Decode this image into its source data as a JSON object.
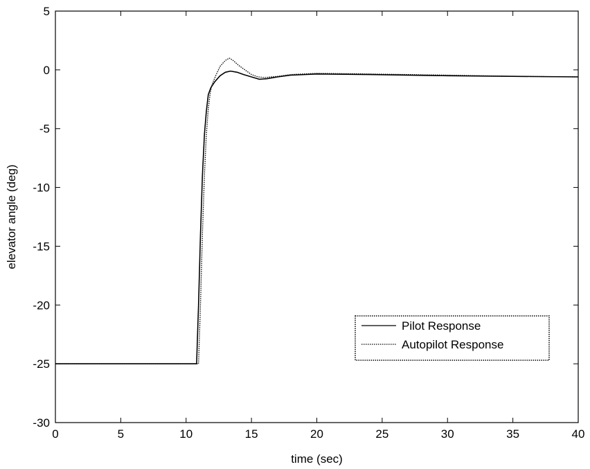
{
  "chart_data": {
    "type": "line",
    "title": "",
    "xlabel": "time (sec)",
    "ylabel": "elevator angle (deg)",
    "xlim": [
      0,
      40
    ],
    "ylim": [
      -30,
      5
    ],
    "xticks": [
      0,
      5,
      10,
      15,
      20,
      25,
      30,
      35,
      40
    ],
    "yticks": [
      5,
      0,
      -5,
      -10,
      -15,
      -20,
      -25,
      -30
    ],
    "grid": false,
    "legend_position": "lower-right",
    "line_color": "#000000",
    "series": [
      {
        "name": "Pilot Response",
        "style": "solid",
        "x": [
          0,
          10.8,
          10.95,
          11.1,
          11.25,
          11.4,
          11.55,
          11.7,
          11.9,
          12.2,
          12.6,
          13.0,
          13.4,
          13.9,
          14.4,
          15.0,
          15.6,
          16.2,
          17.0,
          18.0,
          20.0,
          24.0,
          30.0,
          35.0,
          40.0
        ],
        "y": [
          -25,
          -25,
          -20,
          -14,
          -9,
          -5.5,
          -3.5,
          -2.1,
          -1.5,
          -1.0,
          -0.5,
          -0.2,
          -0.1,
          -0.2,
          -0.4,
          -0.6,
          -0.8,
          -0.75,
          -0.6,
          -0.45,
          -0.35,
          -0.4,
          -0.5,
          -0.55,
          -0.6
        ]
      },
      {
        "name": "Autopilot Response",
        "style": "dotted",
        "x": [
          0,
          10.95,
          11.1,
          11.25,
          11.4,
          11.55,
          11.7,
          11.85,
          12.0,
          12.3,
          12.6,
          13.0,
          13.3,
          13.6,
          14.0,
          14.5,
          15.0,
          15.5,
          16.0,
          17.0,
          18.0,
          20.0,
          24.0,
          30.0,
          35.0,
          40.0
        ],
        "y": [
          -25,
          -25,
          -20,
          -14,
          -9,
          -5.5,
          -3.3,
          -1.9,
          -1.2,
          -0.4,
          0.3,
          0.8,
          1.0,
          0.8,
          0.4,
          0.0,
          -0.4,
          -0.6,
          -0.65,
          -0.55,
          -0.4,
          -0.3,
          -0.35,
          -0.45,
          -0.55,
          -0.6
        ]
      }
    ]
  }
}
